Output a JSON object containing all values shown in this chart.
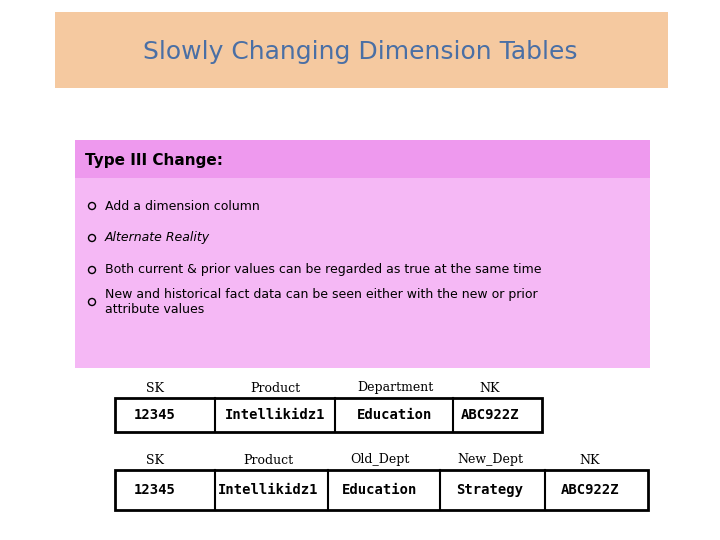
{
  "title": "Slowly Changing Dimension Tables",
  "title_color": "#4a6fa5",
  "title_bg": "#f5c9a0",
  "title_fontsize": 18,
  "type3_label": "Type III Change:",
  "type3_bg": "#ee99ee",
  "type3_text_color": "#000000",
  "bullet_items": [
    {
      "text": "Add a dimension column",
      "italic": false
    },
    {
      "text": "Alternate Reality",
      "italic": true
    },
    {
      "text": "Both current & prior values can be regarded as true at the same time",
      "italic": false
    },
    {
      "text": "New and historical fact data can be seen either with the new or prior\nattribute values",
      "italic": false
    }
  ],
  "bullet_bg": "#f5b8f5",
  "table1_headers": [
    "SK",
    "Product",
    "Department",
    "NK"
  ],
  "table1_row": [
    "12345",
    "Intellikidz1",
    "Education",
    "ABC922Z"
  ],
  "table2_headers": [
    "SK",
    "Product",
    "Old_Dept",
    "New_Dept",
    "NK"
  ],
  "table2_row": [
    "12345",
    "Intellikidz1",
    "Education",
    "Strategy",
    "ABC922Z"
  ],
  "table_border_color": "#000000",
  "table_text_color": "#000000",
  "bg_color": "#ffffff",
  "header_fontsize": 9,
  "cell_fontsize": 10,
  "bullet_fontsize": 9,
  "type3_header_fontsize": 11
}
